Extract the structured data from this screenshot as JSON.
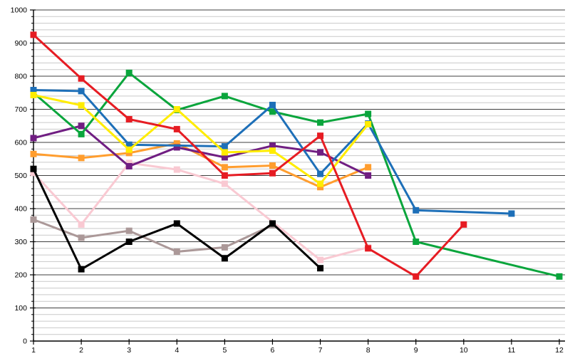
{
  "chart_data": {
    "type": "line",
    "title": "",
    "xlabel": "",
    "ylabel": "",
    "x_ticks": [
      "1",
      "2",
      "3",
      "4",
      "5",
      "6",
      "7",
      "8",
      "9",
      "10",
      "11",
      "12"
    ],
    "y_ticks": [
      "0",
      "100",
      "200",
      "300",
      "400",
      "500",
      "600",
      "700",
      "800",
      "900",
      "1000"
    ],
    "xlim": [
      1,
      12
    ],
    "ylim": [
      0,
      1000
    ],
    "y_major_step": 100,
    "y_minor_step": 20,
    "grid": "horizontal-only",
    "legend": "none",
    "marker": "square",
    "axis_color": "#000000",
    "major_grid_color": "#3f3f3f",
    "minor_grid_color": "#c9c9c9",
    "series_note": "listed bottom-to-top draw order; null = no data point at that x",
    "series": [
      {
        "name": "gray",
        "color": "#ab9898",
        "values": [
          367,
          312,
          333,
          270,
          283,
          350,
          null,
          null,
          null,
          null,
          null,
          null
        ]
      },
      {
        "name": "pink",
        "color": "#f9c9d2",
        "values": [
          508,
          352,
          538,
          518,
          475,
          null,
          245,
          283,
          null,
          null,
          null,
          null
        ]
      },
      {
        "name": "black",
        "color": "#000000",
        "values": [
          520,
          217,
          300,
          355,
          250,
          355,
          220,
          null,
          null,
          null,
          null,
          null
        ]
      },
      {
        "name": "orange",
        "color": "#ff9d2e",
        "values": [
          565,
          553,
          568,
          597,
          525,
          530,
          465,
          525,
          null,
          null,
          null,
          null
        ]
      },
      {
        "name": "purple",
        "color": "#701e82",
        "values": [
          613,
          650,
          528,
          585,
          555,
          590,
          570,
          500,
          null,
          null,
          null,
          null
        ]
      },
      {
        "name": "green",
        "color": "#0aa53c",
        "values": [
          750,
          625,
          810,
          698,
          740,
          693,
          660,
          686,
          300,
          null,
          null,
          195
        ]
      },
      {
        "name": "blue",
        "color": "#1d6fb8",
        "values": [
          758,
          755,
          593,
          null,
          588,
          713,
          505,
          657,
          395,
          null,
          385,
          null
        ]
      },
      {
        "name": "yellow",
        "color": "#ffec00",
        "values": [
          743,
          712,
          578,
          700,
          570,
          575,
          475,
          655,
          null,
          null,
          null,
          null
        ]
      },
      {
        "name": "red",
        "color": "#e61c23",
        "values": [
          925,
          793,
          670,
          640,
          500,
          507,
          620,
          280,
          195,
          352,
          null,
          null
        ]
      }
    ]
  }
}
